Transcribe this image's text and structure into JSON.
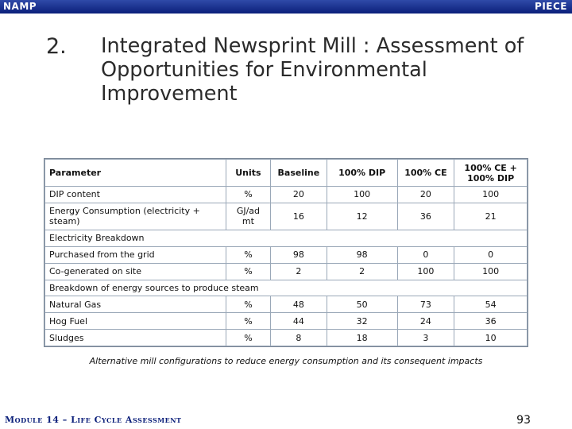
{
  "header": {
    "left": "NAMP",
    "right": "PIECE"
  },
  "slide": {
    "number": "2.",
    "title": "Integrated Newsprint Mill : Assessment of Opportunities for Environmental Improvement"
  },
  "table": {
    "headers": [
      "Parameter",
      "Units",
      "Baseline",
      "100% DIP",
      "100% CE",
      "100% CE + 100% DIP"
    ],
    "rows": [
      {
        "type": "data",
        "cells": [
          "DIP content",
          "%",
          "20",
          "100",
          "20",
          "100"
        ]
      },
      {
        "type": "data",
        "cells": [
          "Energy Consumption (electricity + steam)",
          "GJ/ad mt",
          "16",
          "12",
          "36",
          "21"
        ]
      },
      {
        "type": "section",
        "label": "Electricity Breakdown"
      },
      {
        "type": "data",
        "cells": [
          "Purchased from the grid",
          "%",
          "98",
          "98",
          "0",
          "0"
        ]
      },
      {
        "type": "data",
        "cells": [
          "Co-generated on site",
          "%",
          "2",
          "2",
          "100",
          "100"
        ]
      },
      {
        "type": "section",
        "label": "Breakdown of energy sources to produce steam"
      },
      {
        "type": "data",
        "cells": [
          "Natural Gas",
          "%",
          "48",
          "50",
          "73",
          "54"
        ]
      },
      {
        "type": "data",
        "cells": [
          "Hog Fuel",
          "%",
          "44",
          "32",
          "24",
          "36"
        ]
      },
      {
        "type": "data",
        "cells": [
          "Sludges",
          "%",
          "8",
          "18",
          "3",
          "10"
        ]
      }
    ]
  },
  "caption": "Alternative mill configurations to reduce energy consumption and its consequent impacts",
  "footer": {
    "module": "Module 14 – Life Cycle Assessment",
    "page": "93"
  },
  "colors": {
    "header_bar": "#0b1f7a",
    "footer_text": "#0b1f7a",
    "table_border": "#9aa8b8"
  }
}
